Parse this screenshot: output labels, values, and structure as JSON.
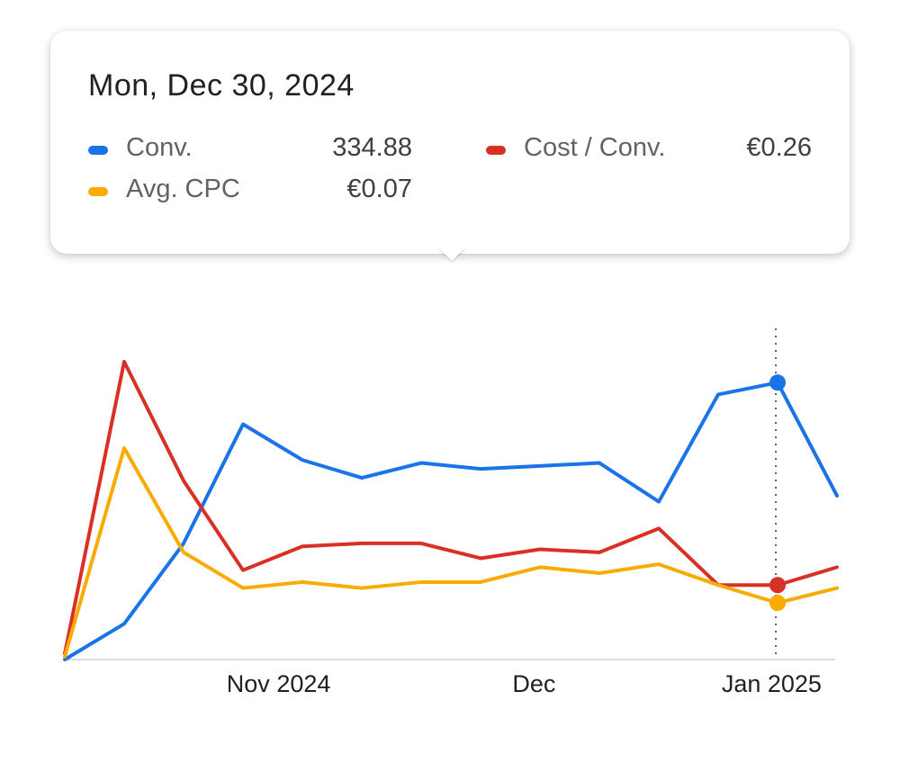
{
  "tooltip": {
    "date": "Mon, Dec 30, 2024",
    "metrics": [
      {
        "name": "conv",
        "label": "Conv.",
        "value": "334.88",
        "color": "#1a73e8"
      },
      {
        "name": "cost-per-conv",
        "label": "Cost / Conv.",
        "value": "€0.26",
        "color": "#d93025"
      },
      {
        "name": "avg-cpc",
        "label": "Avg. CPC",
        "value": "€0.07",
        "color": "#f9ab00"
      }
    ]
  },
  "chart_data": {
    "type": "line",
    "title": "",
    "xlabel": "",
    "ylabel": "",
    "x_tick_labels": [
      "Nov 2024",
      "Dec",
      "Jan 2025"
    ],
    "x_tick_indices": [
      3.6,
      7.9,
      11.9
    ],
    "highlight_index": 12,
    "point_count": 14,
    "series": [
      {
        "name": "Conv.",
        "color": "#1a73e8",
        "values": [
          0,
          0.12,
          0.39,
          0.79,
          0.67,
          0.61,
          0.66,
          0.64,
          0.65,
          0.66,
          0.53,
          0.89,
          0.93,
          0.55
        ]
      },
      {
        "name": "Cost / Conv.",
        "color": "#d93025",
        "values": [
          0.02,
          1.0,
          0.6,
          0.3,
          0.38,
          0.39,
          0.39,
          0.34,
          0.37,
          0.36,
          0.44,
          0.25,
          0.25,
          0.31
        ]
      },
      {
        "name": "Avg. CPC",
        "color": "#f9ab00",
        "values": [
          0.01,
          0.71,
          0.36,
          0.24,
          0.26,
          0.24,
          0.26,
          0.26,
          0.31,
          0.29,
          0.32,
          0.25,
          0.19,
          0.24
        ]
      }
    ]
  }
}
